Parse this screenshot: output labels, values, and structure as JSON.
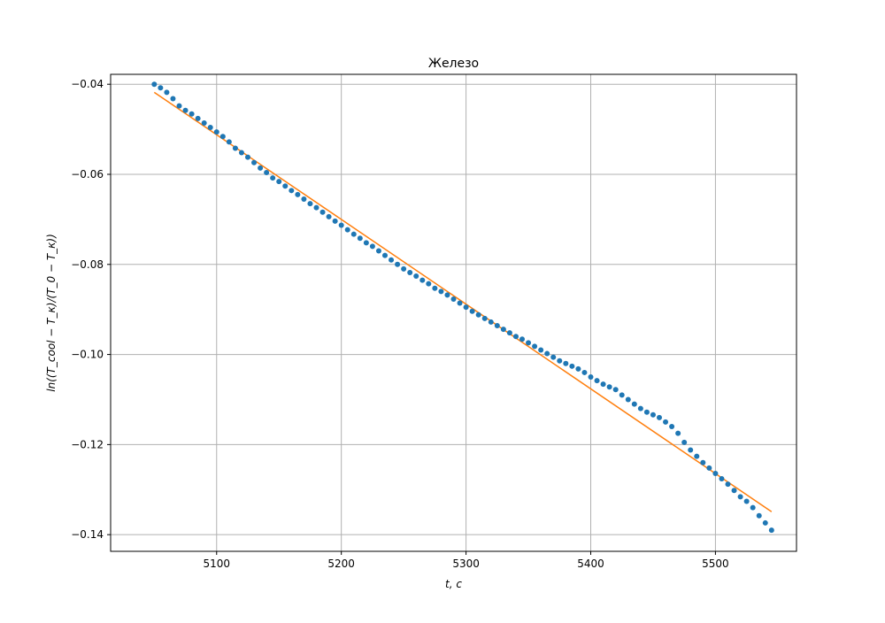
{
  "chart_data": {
    "type": "scatter",
    "title": "Железо",
    "xlabel": "t, c",
    "ylabel": "ln((T_cool − T_к)/(T_0 − T_к))",
    "xlim": [
      5015,
      5565
    ],
    "ylim": [
      -0.1437,
      -0.0378
    ],
    "xticks": [
      5100,
      5200,
      5300,
      5400,
      5500
    ],
    "yticks": [
      -0.14,
      -0.12,
      -0.1,
      -0.08,
      -0.06,
      -0.04
    ],
    "ytick_labels": [
      "−0.14",
      "−0.12",
      "−0.10",
      "−0.08",
      "−0.06",
      "−0.04"
    ],
    "grid": true,
    "colors": {
      "points": "#1f77b4",
      "fit": "#ff7f0e",
      "grid": "#b0b0b0"
    },
    "series": [
      {
        "kind": "points",
        "x": [
          5050,
          5055,
          5060,
          5065,
          5070,
          5075,
          5080,
          5085,
          5090,
          5095,
          5100,
          5105,
          5110,
          5115,
          5120,
          5125,
          5130,
          5135,
          5140,
          5145,
          5150,
          5155,
          5160,
          5165,
          5170,
          5175,
          5180,
          5185,
          5190,
          5195,
          5200,
          5205,
          5210,
          5215,
          5220,
          5225,
          5230,
          5235,
          5240,
          5245,
          5250,
          5255,
          5260,
          5265,
          5270,
          5275,
          5280,
          5285,
          5290,
          5295,
          5300,
          5305,
          5310,
          5315,
          5320,
          5325,
          5330,
          5335,
          5340,
          5345,
          5350,
          5355,
          5360,
          5365,
          5370,
          5375,
          5380,
          5385,
          5390,
          5395,
          5400,
          5405,
          5410,
          5415,
          5420,
          5425,
          5430,
          5435,
          5440,
          5445,
          5450,
          5455,
          5460,
          5465,
          5470,
          5475,
          5480,
          5485,
          5490,
          5495,
          5500,
          5505,
          5510,
          5515,
          5520,
          5525,
          5530,
          5535,
          5540,
          5545
        ],
        "y": [
          -0.04,
          -0.0408,
          -0.0418,
          -0.0432,
          -0.0448,
          -0.0458,
          -0.0466,
          -0.0476,
          -0.0486,
          -0.0496,
          -0.0506,
          -0.0516,
          -0.0528,
          -0.0542,
          -0.0552,
          -0.0562,
          -0.0574,
          -0.0586,
          -0.0596,
          -0.0608,
          -0.0616,
          -0.0626,
          -0.0636,
          -0.0645,
          -0.0655,
          -0.0665,
          -0.0674,
          -0.0684,
          -0.0694,
          -0.0704,
          -0.0713,
          -0.0723,
          -0.0733,
          -0.0742,
          -0.0752,
          -0.076,
          -0.077,
          -0.078,
          -0.079,
          -0.08,
          -0.081,
          -0.0818,
          -0.0826,
          -0.0835,
          -0.0843,
          -0.0853,
          -0.086,
          -0.0868,
          -0.0877,
          -0.0886,
          -0.0895,
          -0.0904,
          -0.0912,
          -0.092,
          -0.0928,
          -0.0936,
          -0.0944,
          -0.0952,
          -0.096,
          -0.0966,
          -0.0974,
          -0.0982,
          -0.099,
          -0.0998,
          -0.1006,
          -0.1014,
          -0.102,
          -0.1026,
          -0.1032,
          -0.104,
          -0.105,
          -0.1058,
          -0.1066,
          -0.1072,
          -0.1078,
          -0.109,
          -0.11,
          -0.111,
          -0.112,
          -0.1128,
          -0.1134,
          -0.114,
          -0.115,
          -0.116,
          -0.1175,
          -0.1195,
          -0.1212,
          -0.1226,
          -0.124,
          -0.1252,
          -0.1264,
          -0.1276,
          -0.1288,
          -0.1302,
          -0.1316,
          -0.1326,
          -0.134,
          -0.1358,
          -0.1374,
          -0.139
        ]
      },
      {
        "kind": "fit-line",
        "x": [
          5050,
          5545
        ],
        "y": [
          -0.0418,
          -0.1349
        ]
      }
    ]
  }
}
